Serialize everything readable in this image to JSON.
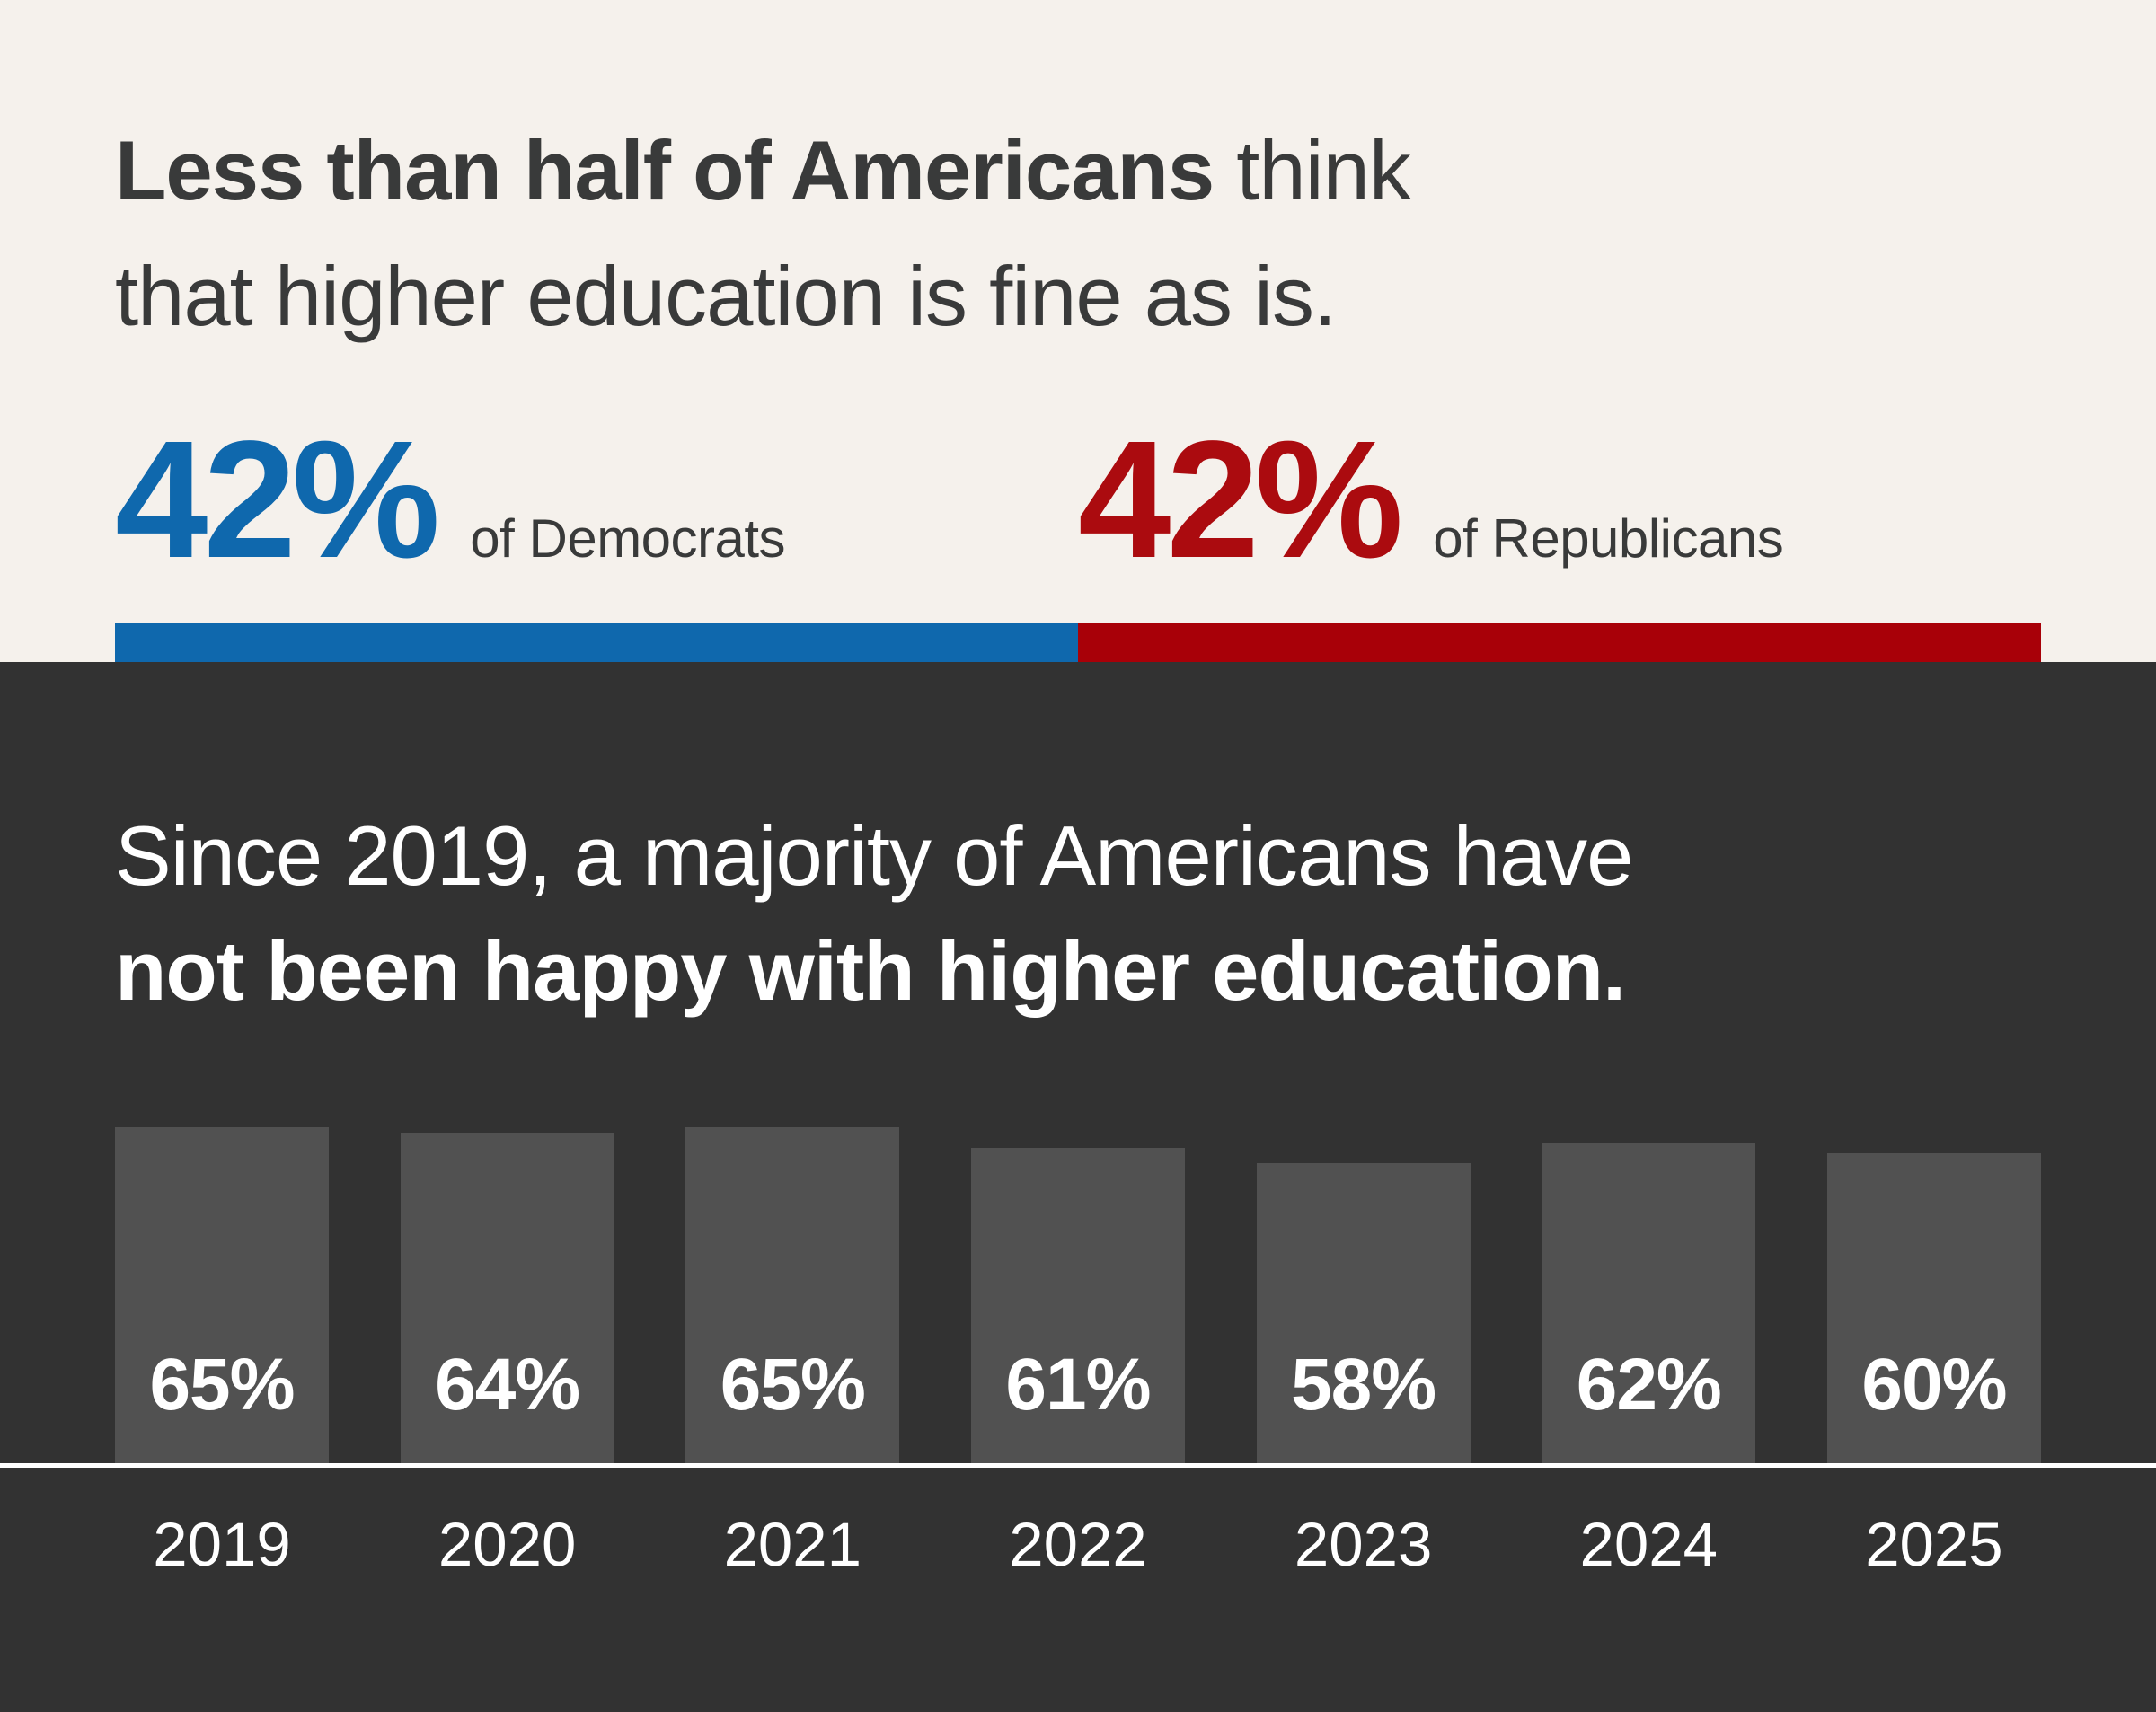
{
  "colors": {
    "background_top": "#f5f1ec",
    "background_bottom": "#323232",
    "democrat_blue": "#0f68ad",
    "republican_red": "#ab0b0f",
    "republican_red_bar": "#a80008",
    "bar_gray": "#515151",
    "text_dark": "#393a3a",
    "text_light": "#ffffff"
  },
  "top_section": {
    "headline": {
      "line1_bold": "Less than half of Americans",
      "line1_regular": " think",
      "line2": "that higher education is fine as is."
    },
    "stats": [
      {
        "party": "democrats",
        "value": "42%",
        "label": "of Democrats"
      },
      {
        "party": "republicans",
        "value": "42%",
        "label": "of Republicans"
      }
    ],
    "split_bar": {
      "segments": [
        {
          "party": "democrats",
          "value": 42,
          "color": "#0f68ad"
        },
        {
          "party": "republicans",
          "value": 42,
          "color": "#a80008"
        }
      ]
    }
  },
  "bottom_section": {
    "headline": {
      "line1_regular": "Since 2019, a majority of Americans have",
      "line2_bold": "not been happy with higher education."
    }
  },
  "chart_data": {
    "type": "bar",
    "title": "Since 2019, a majority of Americans have not been happy with higher education.",
    "categories": [
      "2019",
      "2020",
      "2021",
      "2022",
      "2023",
      "2024",
      "2025"
    ],
    "values": [
      65,
      64,
      65,
      61,
      58,
      62,
      60
    ],
    "bar_labels": [
      "65%",
      "64%",
      "65%",
      "61%",
      "58%",
      "62%",
      "60%"
    ],
    "unit": "%",
    "xlabel": "",
    "ylabel": "",
    "ylim": [
      0,
      65
    ],
    "grid": false,
    "legend": false,
    "bar_color": "#515151",
    "value_label_position": "inside-bottom",
    "value_label_color": "#ffffff"
  }
}
